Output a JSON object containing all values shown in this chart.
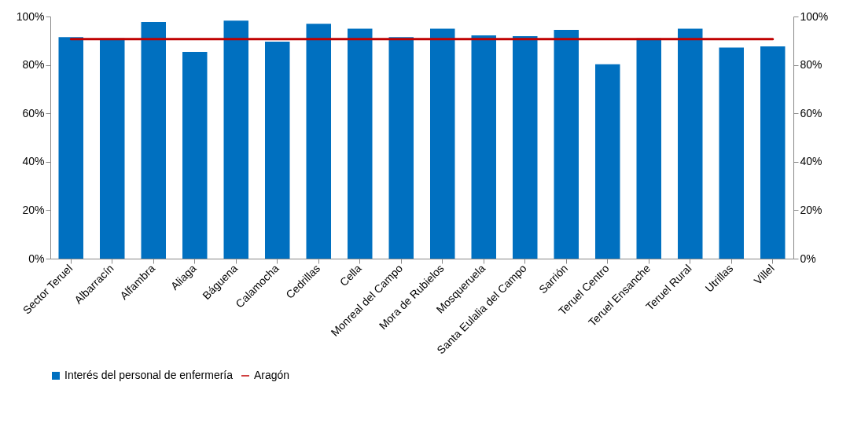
{
  "chart_data": {
    "type": "bar",
    "categories": [
      "Sector Teruel",
      "Albarracín",
      "Alfambra",
      "Aliaga",
      "Báguena",
      "Calamocha",
      "Cedrillas",
      "Cella",
      "Monreal del Campo",
      "Mora de Rubielos",
      "Mosqueruela",
      "Santa Eulalia del Campo",
      "Sarrión",
      "Teruel Centro",
      "Teruel Ensanche",
      "Teruel Rural",
      "Utrillas",
      "Villel"
    ],
    "series": [
      {
        "name": "Interés del personal de enfermería",
        "color": "#0070c0",
        "values": [
          91.5,
          91,
          97.7,
          85.4,
          98.3,
          89.6,
          97,
          95,
          91.5,
          95,
          92.2,
          91.9,
          94.5,
          80.3,
          91,
          95,
          87.2,
          87.7
        ]
      },
      {
        "name": "Aragón",
        "type": "line",
        "axis": "y2",
        "color": "#c00000",
        "values": [
          90.7,
          90.7,
          90.7,
          90.7,
          90.7,
          90.7,
          90.7,
          90.7,
          90.7,
          90.7,
          90.7,
          90.7,
          90.7,
          90.7,
          90.7,
          90.7,
          90.7,
          90.7
        ]
      }
    ],
    "ylim": [
      0,
      100
    ],
    "yticks": [
      {
        "value": 0,
        "label": "0%"
      },
      {
        "value": 20,
        "label": "20%"
      },
      {
        "value": 40,
        "label": "40%"
      },
      {
        "value": 60,
        "label": "60%"
      },
      {
        "value": 80,
        "label": "80%"
      },
      {
        "value": 100,
        "label": "100%"
      }
    ],
    "y2lim": [
      0,
      100
    ],
    "y2ticks": [
      {
        "value": 0,
        "label": "0%"
      },
      {
        "value": 20,
        "label": "20%"
      },
      {
        "value": 40,
        "label": "40%"
      },
      {
        "value": 60,
        "label": "60%"
      },
      {
        "value": 80,
        "label": "80%"
      },
      {
        "value": 100,
        "label": "100%"
      }
    ],
    "grid": false,
    "legend": "bottom"
  }
}
